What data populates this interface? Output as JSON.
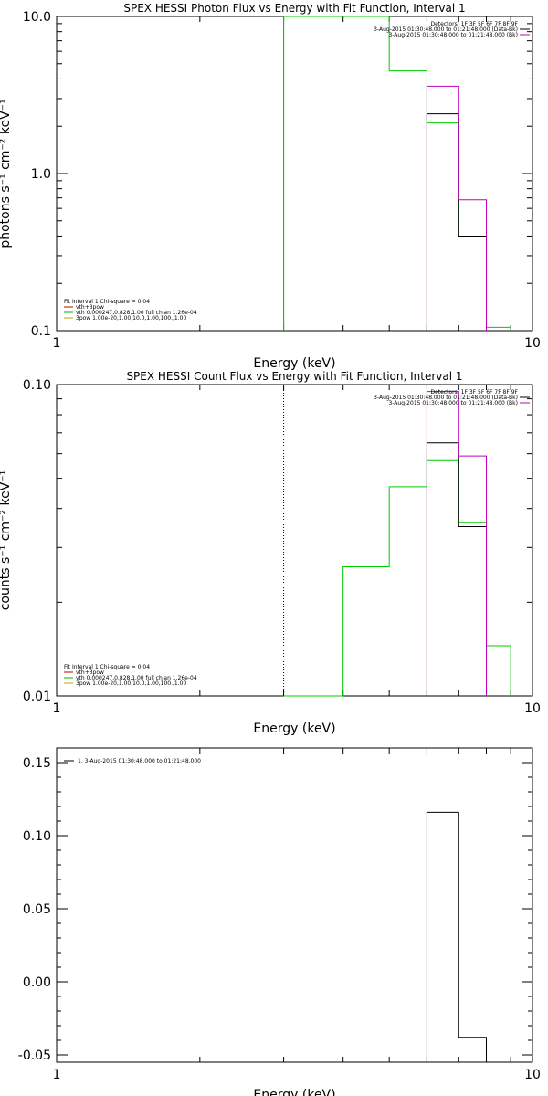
{
  "chart_data": [
    {
      "type": "line",
      "title": "SPEX HESSI Photon Flux vs Energy with Fit Function, Interval 1",
      "xlabel": "Energy (keV)",
      "ylabel": "photons s⁻¹ cm⁻² keV⁻¹",
      "xscale": "log",
      "yscale": "log",
      "xlim": [
        1,
        10
      ],
      "ylim": [
        0.1,
        10
      ],
      "xticks": [
        {
          "v": 1,
          "label": "1"
        },
        {
          "v": 10,
          "label": "10"
        }
      ],
      "yticks": [
        {
          "v": 0.1,
          "label": "0.1"
        },
        {
          "v": 1,
          "label": "1.0"
        },
        {
          "v": 10,
          "label": "10.0"
        }
      ],
      "vline": {
        "x": 3.0,
        "color": "#00b000",
        "style": "solid"
      },
      "legend_right": [
        {
          "text": "Detectors: 1F 3F 5F 6F 7F 8F 9F",
          "color": ""
        },
        {
          "text": "3-Aug-2015 01:30:48.000 to 01:21:48.000 (Data-Bk)",
          "color": "#000000"
        },
        {
          "text": "3-Aug-2015 01:30:48.000 to 01:21:48.000 (Bk)",
          "color": "#c000c0"
        }
      ],
      "legend_left": [
        {
          "text": "Fit Interval 1    Chi-square = 0.04",
          "color": ""
        },
        {
          "text": "vth+3pow",
          "color": "#c00000"
        },
        {
          "text": "vth 0.000247,0.828,1.00  full chian 1.26e-04",
          "color": "#00b000"
        },
        {
          "text": "3pow 1.00e-20,1.00,10.0,1.00,100.,1.00",
          "color": "#c0a000"
        }
      ],
      "series": [
        {
          "color": "#00cc00",
          "edges": [
            3,
            4,
            5,
            6,
            7,
            8,
            9
          ],
          "values": [
            20,
            10,
            4.5,
            2.1,
            0.4,
            0.105
          ]
        },
        {
          "color": "#000000",
          "edges": [
            6,
            7,
            8
          ],
          "values": [
            2.4,
            0.4
          ]
        },
        {
          "color": "#c000c0",
          "edges": [
            6,
            7,
            8
          ],
          "values": [
            3.6,
            0.68
          ]
        }
      ]
    },
    {
      "type": "line",
      "title": "SPEX HESSI Count Flux vs Energy with Fit Function, Interval 1",
      "xlabel": "Energy (keV)",
      "ylabel": "counts s⁻¹ cm⁻² keV⁻¹",
      "xscale": "log",
      "yscale": "log",
      "xlim": [
        1,
        10
      ],
      "ylim": [
        0.01,
        0.1
      ],
      "xticks": [
        {
          "v": 1,
          "label": "1"
        },
        {
          "v": 10,
          "label": "10"
        }
      ],
      "yticks": [
        {
          "v": 0.01,
          "label": "0.01"
        },
        {
          "v": 0.1,
          "label": "0.10"
        }
      ],
      "vline": {
        "x": 3.0,
        "color": "#000000",
        "style": "dotted"
      },
      "legend_right": [
        {
          "text": "Detectors: 1F 3F 5F 6F 7F 8F 9F",
          "color": ""
        },
        {
          "text": "3-Aug-2015 01:30:48.000 to 01:21:48.000 (Data-Bk)",
          "color": "#000000"
        },
        {
          "text": "3-Aug-2015 01:30:48.000 to 01:21:48.000 (Bk)",
          "color": "#c000c0"
        }
      ],
      "legend_left": [
        {
          "text": "Fit Interval 1    Chi-square = 0.04",
          "color": ""
        },
        {
          "text": "vth+3pow",
          "color": "#c00000"
        },
        {
          "text": "vth 0.000247,0.828,1.00  full chian 1.26e-04",
          "color": "#00b000"
        },
        {
          "text": "3pow 1.00e-20,1.00,10.0,1.00,100.,1.00",
          "color": "#c0a000"
        }
      ],
      "series": [
        {
          "color": "#00cc00",
          "edges": [
            3,
            4,
            5,
            6,
            7,
            8,
            9
          ],
          "values": [
            0.01,
            0.026,
            0.047,
            0.057,
            0.036,
            0.0145
          ],
          "baseline": 0.01
        },
        {
          "color": "#000000",
          "edges": [
            6,
            7,
            8
          ],
          "values": [
            0.065,
            0.035
          ],
          "baseline": 0.01
        },
        {
          "color": "#c000c0",
          "edges": [
            6,
            7,
            8
          ],
          "values": [
            0.095,
            0.059
          ],
          "baseline": 0.01
        }
      ]
    },
    {
      "type": "line",
      "title": "",
      "xlabel": "Energy (keV)",
      "ylabel": "",
      "xscale": "log",
      "yscale": "linear",
      "xlim": [
        1,
        10
      ],
      "ylim": [
        -0.055,
        0.16
      ],
      "xticks": [
        {
          "v": 1,
          "label": "1"
        },
        {
          "v": 10,
          "label": "10"
        }
      ],
      "yticks": [
        {
          "v": -0.05,
          "label": "-0.05"
        },
        {
          "v": 0,
          "label": "0.00"
        },
        {
          "v": 0.05,
          "label": "0.05"
        },
        {
          "v": 0.1,
          "label": "0.10"
        },
        {
          "v": 0.15,
          "label": "0.15"
        }
      ],
      "legend_left_top": [
        {
          "text": "1.  3-Aug-2015 01:30:48.000 to 01:21:48.000",
          "color": "#000000"
        }
      ],
      "series": [
        {
          "color": "#000000",
          "edges": [
            6,
            7,
            8
          ],
          "values": [
            0.116,
            -0.038
          ],
          "baseline": -0.055
        }
      ]
    }
  ]
}
